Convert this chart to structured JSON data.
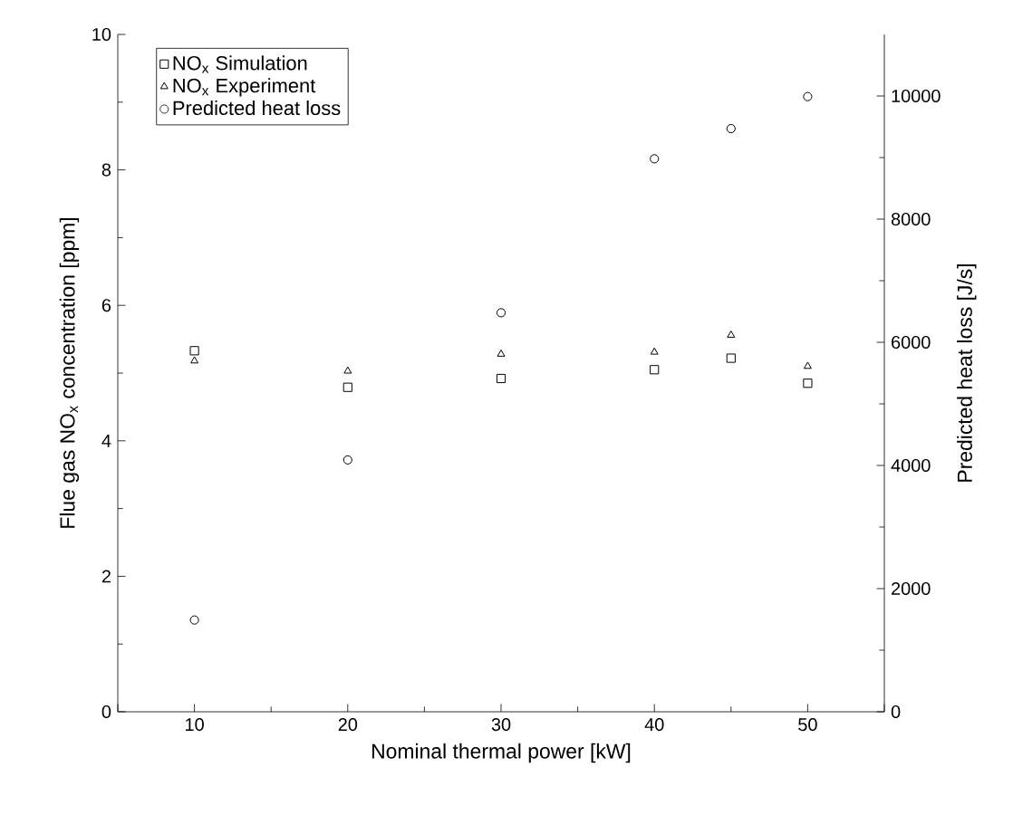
{
  "chart_data": {
    "type": "scatter",
    "xlabel": "Nominal thermal power [kW]",
    "ylabel": "Flue gas NO$_{x}$ concentration [ppm]",
    "y2label": "Predicted heat loss [J/s]",
    "x": [
      10,
      20,
      30,
      40,
      45,
      50
    ],
    "xlim": [
      5,
      55
    ],
    "xticks": [
      10,
      20,
      30,
      40,
      50
    ],
    "ylim": [
      0,
      10
    ],
    "yticks": [
      0,
      2,
      4,
      6,
      8,
      10
    ],
    "y2lim": [
      0,
      11000
    ],
    "y2ticks": [
      0,
      2000,
      4000,
      6000,
      8000,
      10000
    ],
    "legend": "top left",
    "grid": false,
    "series": [
      {
        "name": "NO$_{x}$ Simulation",
        "color": "#000000",
        "marker": "square",
        "values": [
          5.33,
          4.79,
          4.92,
          5.05,
          5.22,
          4.85
        ]
      },
      {
        "name": "NO$_{x}$ Experiment",
        "color": "#000000",
        "marker": "triangle",
        "values": [
          5.18,
          5.03,
          5.28,
          5.31,
          5.56,
          5.1
        ]
      },
      {
        "name": "Predicted heat loss",
        "color": "#000000",
        "marker": "circle",
        "axis": "y2",
        "values": [
          1490,
          4090,
          6480,
          8980,
          9470,
          9990
        ]
      }
    ]
  }
}
